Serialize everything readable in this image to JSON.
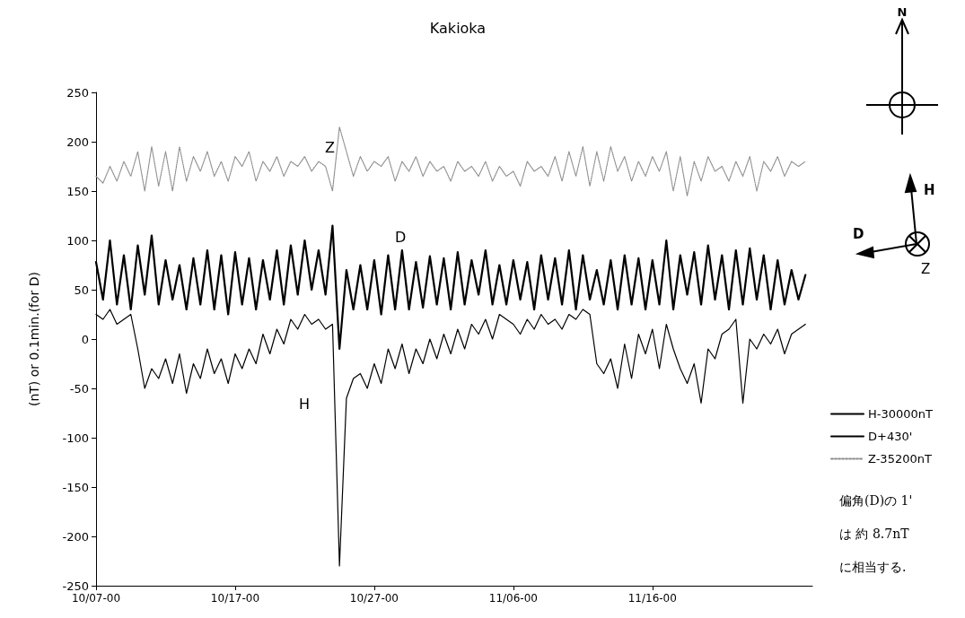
{
  "chart_data": {
    "type": "line",
    "title": "Kakioka",
    "ylabel": "(nT) or 0.1min.(for D)",
    "x": [
      "--10-07T00:00",
      "--10-07T12:00",
      "--10-08T00:00",
      "--10-08T12:00",
      "--10-09T00:00",
      "--10-09T12:00",
      "--10-10T00:00",
      "--10-10T12:00",
      "--10-11T00:00",
      "--10-11T12:00",
      "--10-12T00:00",
      "--10-12T12:00",
      "--10-13T00:00",
      "--10-13T12:00",
      "--10-14T00:00",
      "--10-14T12:00",
      "--10-15T00:00",
      "--10-15T12:00",
      "--10-16T00:00",
      "--10-16T12:00",
      "--10-17T00:00",
      "--10-17T12:00",
      "--10-18T00:00",
      "--10-18T12:00",
      "--10-19T00:00",
      "--10-19T12:00",
      "--10-20T00:00",
      "--10-20T12:00",
      "--10-21T00:00",
      "--10-21T12:00",
      "--10-22T00:00",
      "--10-22T12:00",
      "--10-23T00:00",
      "--10-23T12:00",
      "--10-24T00:00",
      "--10-24T12:00",
      "--10-25T00:00",
      "--10-25T12:00",
      "--10-26T00:00",
      "--10-26T12:00",
      "--10-27T00:00",
      "--10-27T12:00",
      "--10-28T00:00",
      "--10-28T12:00",
      "--10-29T00:00",
      "--10-29T12:00",
      "--10-30T00:00",
      "--10-30T12:00",
      "--10-31T00:00",
      "--10-31T12:00",
      "--11-01T00:00",
      "--11-01T12:00",
      "--11-02T00:00",
      "--11-02T12:00",
      "--11-03T00:00",
      "--11-03T12:00",
      "--11-04T00:00",
      "--11-04T12:00",
      "--11-05T00:00",
      "--11-05T12:00",
      "--11-06T00:00",
      "--11-06T12:00",
      "--11-07T00:00",
      "--11-07T12:00",
      "--11-08T00:00",
      "--11-08T12:00",
      "--11-09T00:00",
      "--11-09T12:00",
      "--11-10T00:00",
      "--11-10T12:00",
      "--11-11T00:00",
      "--11-11T12:00",
      "--11-12T00:00",
      "--11-12T12:00",
      "--11-13T00:00",
      "--11-13T12:00",
      "--11-14T00:00",
      "--11-14T12:00",
      "--11-15T00:00",
      "--11-15T12:00",
      "--11-16T00:00",
      "--11-16T12:00",
      "--11-17T00:00",
      "--11-17T12:00",
      "--11-18T00:00",
      "--11-18T12:00",
      "--11-19T00:00",
      "--11-19T12:00",
      "--11-20T00:00",
      "--11-20T12:00",
      "--11-21T00:00",
      "--11-21T12:00",
      "--11-22T00:00",
      "--11-22T12:00",
      "--11-23T00:00",
      "--11-23T12:00",
      "--11-24T00:00",
      "--11-24T12:00",
      "--11-25T00:00",
      "--11-25T12:00",
      "--11-26T00:00",
      "--11-26T12:00",
      "--11-27T00:00"
    ],
    "series": [
      {
        "name": "H-30000nT",
        "color": "#000000",
        "line_style": "solid",
        "values": [
          25,
          20,
          30,
          15,
          20,
          25,
          -10,
          -50,
          -30,
          -40,
          -20,
          -45,
          -15,
          -55,
          -25,
          -40,
          -10,
          -35,
          -20,
          -45,
          -15,
          -30,
          -10,
          -25,
          5,
          -15,
          10,
          -5,
          20,
          10,
          25,
          15,
          20,
          10,
          15,
          -230,
          -60,
          -40,
          -35,
          -50,
          -25,
          -45,
          -10,
          -30,
          -5,
          -35,
          -10,
          -25,
          0,
          -20,
          5,
          -15,
          10,
          -10,
          15,
          5,
          20,
          0,
          25,
          20,
          15,
          5,
          20,
          10,
          25,
          15,
          20,
          10,
          25,
          20,
          30,
          25,
          -25,
          -35,
          -20,
          -50,
          -5,
          -40,
          5,
          -15,
          10,
          -30,
          15,
          -10,
          -30,
          -45,
          -25,
          -65,
          -10,
          -20,
          5,
          10,
          20,
          -65,
          0,
          -10,
          5,
          -5,
          10,
          -15,
          5,
          10,
          15
        ]
      },
      {
        "name": "D+430'",
        "color": "#000000",
        "line_style": "solid",
        "values": [
          78,
          40,
          100,
          35,
          85,
          30,
          95,
          45,
          105,
          35,
          80,
          40,
          75,
          30,
          82,
          35,
          90,
          30,
          85,
          25,
          88,
          35,
          82,
          30,
          80,
          40,
          90,
          35,
          95,
          45,
          100,
          50,
          90,
          45,
          115,
          -10,
          70,
          30,
          75,
          30,
          80,
          25,
          85,
          30,
          90,
          30,
          78,
          32,
          84,
          35,
          82,
          30,
          88,
          35,
          80,
          45,
          90,
          35,
          75,
          35,
          80,
          40,
          78,
          30,
          85,
          40,
          82,
          35,
          90,
          30,
          85,
          40,
          70,
          35,
          80,
          30,
          85,
          35,
          82,
          30,
          80,
          35,
          100,
          30,
          85,
          45,
          88,
          35,
          95,
          40,
          85,
          30,
          90,
          35,
          92,
          40,
          85,
          30,
          80,
          35,
          70,
          40,
          65
        ]
      },
      {
        "name": "Z-35200nT",
        "color": "#8c8c8c",
        "line_style": "dotted",
        "values": [
          165,
          158,
          175,
          160,
          180,
          165,
          190,
          150,
          195,
          155,
          190,
          150,
          195,
          160,
          185,
          170,
          190,
          165,
          180,
          160,
          185,
          175,
          190,
          160,
          180,
          170,
          185,
          165,
          180,
          175,
          185,
          170,
          180,
          175,
          150,
          215,
          190,
          165,
          185,
          170,
          180,
          175,
          185,
          160,
          180,
          170,
          185,
          165,
          180,
          170,
          175,
          160,
          180,
          170,
          175,
          165,
          180,
          160,
          175,
          165,
          170,
          155,
          180,
          170,
          175,
          165,
          185,
          160,
          190,
          165,
          195,
          155,
          190,
          160,
          195,
          170,
          185,
          160,
          180,
          165,
          185,
          170,
          190,
          150,
          185,
          145,
          180,
          160,
          185,
          170,
          175,
          160,
          180,
          165,
          185,
          150,
          180,
          170,
          185,
          165,
          180,
          175,
          180
        ]
      }
    ],
    "xlim": [
      "--10-07T00:00",
      "--11-27T12:00"
    ],
    "xticks": [
      {
        "value": "--10-07",
        "label": "10/07-00"
      },
      {
        "value": "--10-17",
        "label": "10/17-00"
      },
      {
        "value": "--10-27",
        "label": "10/27-00"
      },
      {
        "value": "--11-06",
        "label": "11/06-00"
      },
      {
        "value": "--11-16",
        "label": "11/16-00"
      }
    ],
    "ylim": [
      -250,
      250
    ],
    "yticks": [
      -250,
      -200,
      -150,
      -100,
      -50,
      0,
      50,
      100,
      150,
      200,
      250
    ],
    "grid": false,
    "legend": "right",
    "marker": "none",
    "annotations": [
      "Z",
      "D",
      "H",
      "N",
      "H",
      "D",
      "Z",
      "偏角(D)の 1'",
      "は 約 8.7nT",
      "に相当する."
    ]
  }
}
